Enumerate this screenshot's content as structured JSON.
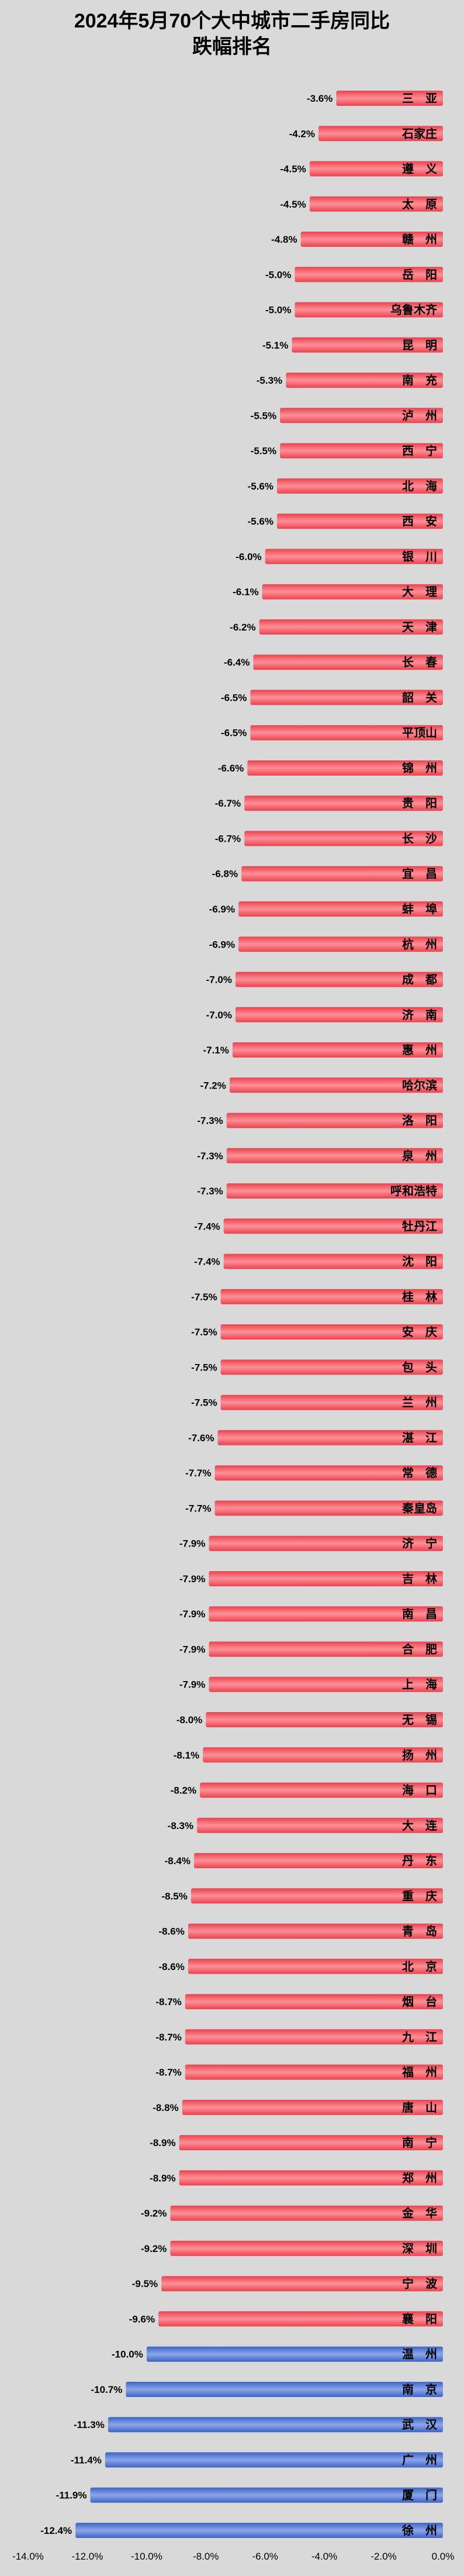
{
  "chart_data": {
    "type": "bar",
    "orientation": "horizontal",
    "title_lines": [
      "2024年5月70个大中城市二手房同比",
      "跌幅排名"
    ],
    "categories": [
      "三　亚",
      "石家庄",
      "遵　义",
      "太　原",
      "赣　州",
      "岳　阳",
      "乌鲁木齐",
      "昆　明",
      "南　充",
      "泸　州",
      "西　宁",
      "北　海",
      "西　安",
      "银　川",
      "大　理",
      "天　津",
      "长　春",
      "韶　关",
      "平顶山",
      "锦　州",
      "贵　阳",
      "长　沙",
      "宜　昌",
      "蚌　埠",
      "杭　州",
      "成　都",
      "济　南",
      "惠　州",
      "哈尔滨",
      "洛　阳",
      "泉　州",
      "呼和浩特",
      "牡丹江",
      "沈　阳",
      "桂　林",
      "安　庆",
      "包　头",
      "兰　州",
      "湛　江",
      "常　德",
      "秦皇岛",
      "济　宁",
      "吉　林",
      "南　昌",
      "合　肥",
      "上　海",
      "无　锡",
      "扬　州",
      "海　口",
      "大　连",
      "丹　东",
      "重　庆",
      "青　岛",
      "北　京",
      "烟　台",
      "九　江",
      "福　州",
      "唐　山",
      "南　宁",
      "郑　州",
      "金　华",
      "深　圳",
      "宁　波",
      "襄　阳",
      "温　州",
      "南　京",
      "武　汉",
      "广　州",
      "厦　门",
      "徐　州"
    ],
    "values": [
      -3.6,
      -4.2,
      -4.5,
      -4.5,
      -4.8,
      -5.0,
      -5.0,
      -5.1,
      -5.3,
      -5.5,
      -5.5,
      -5.6,
      -5.6,
      -6.0,
      -6.1,
      -6.2,
      -6.4,
      -6.5,
      -6.5,
      -6.6,
      -6.7,
      -6.7,
      -6.8,
      -6.9,
      -6.9,
      -7.0,
      -7.0,
      -7.1,
      -7.2,
      -7.3,
      -7.3,
      -7.3,
      -7.4,
      -7.4,
      -7.5,
      -7.5,
      -7.5,
      -7.5,
      -7.6,
      -7.7,
      -7.7,
      -7.9,
      -7.9,
      -7.9,
      -7.9,
      -7.9,
      -8.0,
      -8.1,
      -8.2,
      -8.3,
      -8.4,
      -8.5,
      -8.6,
      -8.6,
      -8.7,
      -8.7,
      -8.7,
      -8.8,
      -8.9,
      -8.9,
      -9.2,
      -9.2,
      -9.5,
      -9.6,
      -10.0,
      -10.7,
      -11.3,
      -11.4,
      -11.9,
      -12.4
    ],
    "value_labels": [
      "-3.6%",
      "-4.2%",
      "-4.5%",
      "-4.5%",
      "-4.8%",
      "-5.0%",
      "-5.0%",
      "-5.1%",
      "-5.3%",
      "-5.5%",
      "-5.5%",
      "-5.6%",
      "-5.6%",
      "-6.0%",
      "-6.1%",
      "-6.2%",
      "-6.4%",
      "-6.5%",
      "-6.5%",
      "-6.6%",
      "-6.7%",
      "-6.7%",
      "-6.8%",
      "-6.9%",
      "-6.9%",
      "-7.0%",
      "-7.0%",
      "-7.1%",
      "-7.2%",
      "-7.3%",
      "-7.3%",
      "-7.3%",
      "-7.4%",
      "-7.4%",
      "-7.5%",
      "-7.5%",
      "-7.5%",
      "-7.5%",
      "-7.6%",
      "-7.7%",
      "-7.7%",
      "-7.9%",
      "-7.9%",
      "-7.9%",
      "-7.9%",
      "-7.9%",
      "-8.0%",
      "-8.1%",
      "-8.2%",
      "-8.3%",
      "-8.4%",
      "-8.5%",
      "-8.6%",
      "-8.6%",
      "-8.7%",
      "-8.7%",
      "-8.7%",
      "-8.8%",
      "-8.9%",
      "-8.9%",
      "-9.2%",
      "-9.2%",
      "-9.5%",
      "-9.6%",
      "-10.0%",
      "-10.7%",
      "-11.3%",
      "-11.4%",
      "-11.9%",
      "-12.4%"
    ],
    "xlim": [
      -14,
      0
    ],
    "xticks": [
      -14,
      -12,
      -10,
      -8,
      -6,
      -4,
      -2,
      0
    ],
    "xtick_labels": [
      "-14.0%",
      "-12.0%",
      "-10.0%",
      "-8.0%",
      "-6.0%",
      "-4.0%",
      "-2.0%",
      "0.0%"
    ],
    "highlight_threshold": -10.0,
    "colors": {
      "normal": "#e8434f",
      "normal_light": "#ff8f96",
      "highlight": "#3f63c2",
      "highlight_light": "#8aa6ea",
      "background": "#d9d9d9",
      "text": "#000000"
    },
    "grid": false,
    "legend": "none"
  }
}
